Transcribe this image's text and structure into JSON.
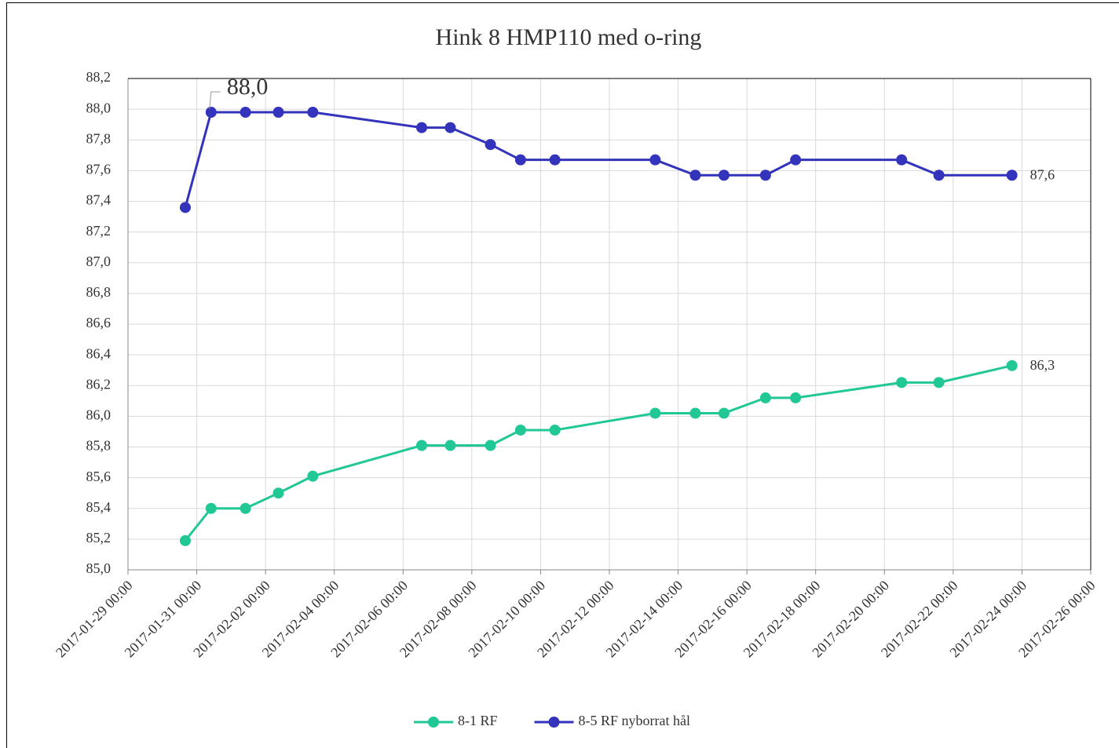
{
  "chart_data": {
    "type": "line",
    "title": "Hink 8 HMP110 med o-ring",
    "x": [
      "2017-01-30 16:00",
      "2017-01-31 10:00",
      "2017-02-01 10:00",
      "2017-02-02 09:00",
      "2017-02-03 09:00",
      "2017-02-06 13:00",
      "2017-02-07 09:00",
      "2017-02-08 13:00",
      "2017-02-09 10:00",
      "2017-02-10 10:00",
      "2017-02-13 08:00",
      "2017-02-14 12:00",
      "2017-02-15 08:00",
      "2017-02-16 13:00",
      "2017-02-17 10:00",
      "2017-02-20 12:00",
      "2017-02-21 14:00",
      "2017-02-23 17:00"
    ],
    "series": [
      {
        "name": "8-1 RF",
        "color": "#21c896",
        "values": [
          85.19,
          85.4,
          85.4,
          85.5,
          85.61,
          85.81,
          85.81,
          85.81,
          85.91,
          85.91,
          86.02,
          86.02,
          86.02,
          86.12,
          86.12,
          86.22,
          86.22,
          86.33
        ],
        "value_labels": [
          null,
          null,
          null,
          null,
          null,
          null,
          null,
          null,
          null,
          null,
          null,
          null,
          null,
          null,
          null,
          null,
          null,
          "86,3"
        ]
      },
      {
        "name": "8-5 RF nyborrat hål",
        "color": "#3333bb",
        "values": [
          87.36,
          87.98,
          87.98,
          87.98,
          87.98,
          87.88,
          87.88,
          87.77,
          87.67,
          87.67,
          87.67,
          87.57,
          87.57,
          87.57,
          87.67,
          87.67,
          87.57,
          87.57
        ],
        "value_labels": [
          null,
          "88,0",
          null,
          null,
          null,
          null,
          null,
          null,
          null,
          null,
          null,
          null,
          null,
          null,
          null,
          null,
          null,
          "87,6"
        ]
      }
    ],
    "xlim": [
      "2017-01-29 00:00",
      "2017-02-26 00:00"
    ],
    "xticks": [
      "2017-01-29 00:00",
      "2017-01-31 00:00",
      "2017-02-02 00:00",
      "2017-02-04 00:00",
      "2017-02-06 00:00",
      "2017-02-08 00:00",
      "2017-02-10 00:00",
      "2017-02-12 00:00",
      "2017-02-14 00:00",
      "2017-02-16 00:00",
      "2017-02-18 00:00",
      "2017-02-20 00:00",
      "2017-02-22 00:00",
      "2017-02-24 00:00",
      "2017-02-26 00:00"
    ],
    "ylim": [
      85.0,
      88.2
    ],
    "yticks": [
      {
        "value": 85.0,
        "label": "85,0"
      },
      {
        "value": 85.2,
        "label": "85,2"
      },
      {
        "value": 85.4,
        "label": "85,4"
      },
      {
        "value": 85.6,
        "label": "85,6"
      },
      {
        "value": 85.8,
        "label": "85,8"
      },
      {
        "value": 86.0,
        "label": "86,0"
      },
      {
        "value": 86.2,
        "label": "86,2"
      },
      {
        "value": 86.4,
        "label": "86,4"
      },
      {
        "value": 86.6,
        "label": "86,6"
      },
      {
        "value": 86.8,
        "label": "86,8"
      },
      {
        "value": 87.0,
        "label": "87,0"
      },
      {
        "value": 87.2,
        "label": "87,2"
      },
      {
        "value": 87.4,
        "label": "87,4"
      },
      {
        "value": 87.6,
        "label": "87,6"
      },
      {
        "value": 87.8,
        "label": "87,8"
      },
      {
        "value": 88.0,
        "label": "88,0"
      },
      {
        "value": 88.2,
        "label": "88,2"
      }
    ],
    "grid": true,
    "legend": "bottom"
  }
}
